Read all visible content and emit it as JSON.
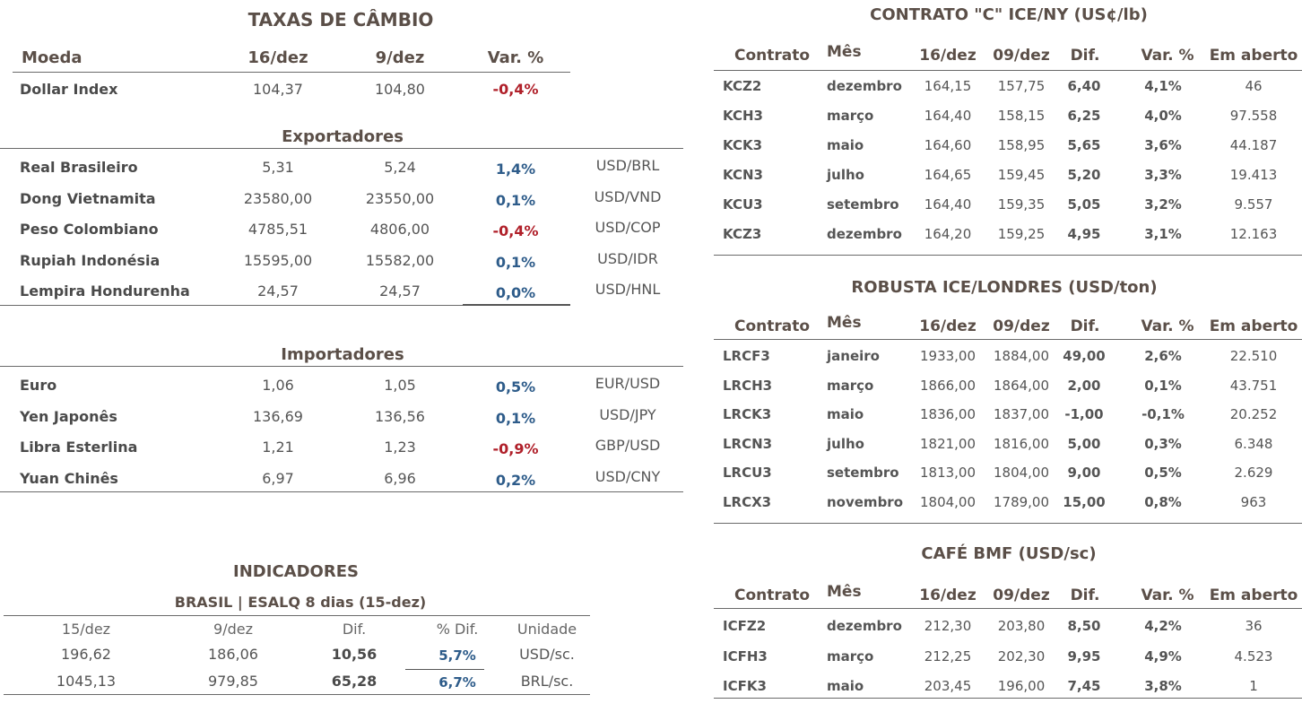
{
  "fx": {
    "title": "TAXAS DE CÂMBIO",
    "headers": [
      "Moeda",
      "16/dez",
      "9/dez",
      "Var. %"
    ],
    "dollar_index": {
      "name": "Dollar Index",
      "v1": "104,37",
      "v2": "104,80",
      "var": "-0,4%"
    },
    "exportadores_title": "Exportadores",
    "exportadores": [
      {
        "name": "Real Brasileiro",
        "v1": "5,31",
        "v2": "5,24",
        "var": "1,4%",
        "pair": "USD/BRL"
      },
      {
        "name": "Dong Vietnamita",
        "v1": "23580,00",
        "v2": "23550,00",
        "var": "0,1%",
        "pair": "USD/VND"
      },
      {
        "name": "Peso Colombiano",
        "v1": "4785,51",
        "v2": "4806,00",
        "var": "-0,4%",
        "pair": "USD/COP"
      },
      {
        "name": "Rupiah Indonésia",
        "v1": "15595,00",
        "v2": "15582,00",
        "var": "0,1%",
        "pair": "USD/IDR"
      },
      {
        "name": "Lempira Hondurenha",
        "v1": "24,57",
        "v2": "24,57",
        "var": "0,0%",
        "pair": "USD/HNL"
      }
    ],
    "importadores_title": "Importadores",
    "importadores": [
      {
        "name": "Euro",
        "v1": "1,06",
        "v2": "1,05",
        "var": "0,5%",
        "pair": "EUR/USD"
      },
      {
        "name": "Yen Japonês",
        "v1": "136,69",
        "v2": "136,56",
        "var": "0,1%",
        "pair": "USD/JPY"
      },
      {
        "name": "Libra Esterlina",
        "v1": "1,21",
        "v2": "1,23",
        "var": "-0,9%",
        "pair": "GBP/USD"
      },
      {
        "name": "Yuan Chinês",
        "v1": "6,97",
        "v2": "6,96",
        "var": "0,2%",
        "pair": "USD/CNY"
      }
    ]
  },
  "indicadores": {
    "title": "INDICADORES",
    "subtitle": "BRASIL | ESALQ 8 dias (15-dez)",
    "headers": [
      "15/dez",
      "9/dez",
      "Dif.",
      "% Dif.",
      "Unidade"
    ],
    "rows": [
      {
        "v1": "196,62",
        "v2": "186,06",
        "dif": "10,56",
        "pct": "5,7%",
        "unit": "USD/sc."
      },
      {
        "v1": "1045,13",
        "v2": "979,85",
        "dif": "65,28",
        "pct": "6,7%",
        "unit": "BRL/sc."
      }
    ]
  },
  "ice_ny": {
    "title": "CONTRATO \"C\" ICE/NY (US¢/lb)",
    "headers": [
      "Contrato",
      "Mês",
      "16/dez",
      "09/dez",
      "Dif.",
      "Var. %",
      "Em aberto"
    ],
    "rows": [
      {
        "c": "KCZ2",
        "m": "dezembro",
        "v1": "164,15",
        "v2": "157,75",
        "dif": "6,40",
        "var": "4,1%",
        "open": "46"
      },
      {
        "c": "KCH3",
        "m": "março",
        "v1": "164,40",
        "v2": "158,15",
        "dif": "6,25",
        "var": "4,0%",
        "open": "97.558"
      },
      {
        "c": "KCK3",
        "m": "maio",
        "v1": "164,60",
        "v2": "158,95",
        "dif": "5,65",
        "var": "3,6%",
        "open": "44.187"
      },
      {
        "c": "KCN3",
        "m": "julho",
        "v1": "164,65",
        "v2": "159,45",
        "dif": "5,20",
        "var": "3,3%",
        "open": "19.413"
      },
      {
        "c": "KCU3",
        "m": "setembro",
        "v1": "164,40",
        "v2": "159,35",
        "dif": "5,05",
        "var": "3,2%",
        "open": "9.557"
      },
      {
        "c": "KCZ3",
        "m": "dezembro",
        "v1": "164,20",
        "v2": "159,25",
        "dif": "4,95",
        "var": "3,1%",
        "open": "12.163"
      }
    ]
  },
  "robusta": {
    "title": "ROBUSTA ICE/LONDRES (USD/ton)",
    "headers": [
      "Contrato",
      "Mês",
      "16/dez",
      "09/dez",
      "Dif.",
      "Var. %",
      "Em aberto"
    ],
    "rows": [
      {
        "c": "LRCF3",
        "m": "janeiro",
        "v1": "1933,00",
        "v2": "1884,00",
        "dif": "49,00",
        "var": "2,6%",
        "open": "22.510"
      },
      {
        "c": "LRCH3",
        "m": "março",
        "v1": "1866,00",
        "v2": "1864,00",
        "dif": "2,00",
        "var": "0,1%",
        "open": "43.751"
      },
      {
        "c": "LRCK3",
        "m": "maio",
        "v1": "1836,00",
        "v2": "1837,00",
        "dif": "-1,00",
        "var": "-0,1%",
        "open": "20.252"
      },
      {
        "c": "LRCN3",
        "m": "julho",
        "v1": "1821,00",
        "v2": "1816,00",
        "dif": "5,00",
        "var": "0,3%",
        "open": "6.348"
      },
      {
        "c": "LRCU3",
        "m": "setembro",
        "v1": "1813,00",
        "v2": "1804,00",
        "dif": "9,00",
        "var": "0,5%",
        "open": "2.629"
      },
      {
        "c": "LRCX3",
        "m": "novembro",
        "v1": "1804,00",
        "v2": "1789,00",
        "dif": "15,00",
        "var": "0,8%",
        "open": "963"
      }
    ]
  },
  "bmf": {
    "title": "CAFÉ BMF (USD/sc)",
    "headers": [
      "Contrato",
      "Mês",
      "16/dez",
      "09/dez",
      "Dif.",
      "Var. %",
      "Em aberto"
    ],
    "rows": [
      {
        "c": "ICFZ2",
        "m": "dezembro",
        "v1": "212,30",
        "v2": "203,80",
        "dif": "8,50",
        "var": "4,2%",
        "open": "36"
      },
      {
        "c": "ICFH3",
        "m": "março",
        "v1": "212,25",
        "v2": "202,30",
        "dif": "9,95",
        "var": "4,9%",
        "open": "4.523"
      },
      {
        "c": "ICFK3",
        "m": "maio",
        "v1": "203,45",
        "v2": "196,00",
        "dif": "7,45",
        "var": "3,8%",
        "open": "1"
      }
    ]
  },
  "colors": {
    "positive": "#2e5c8a",
    "negative": "#b0202a"
  }
}
